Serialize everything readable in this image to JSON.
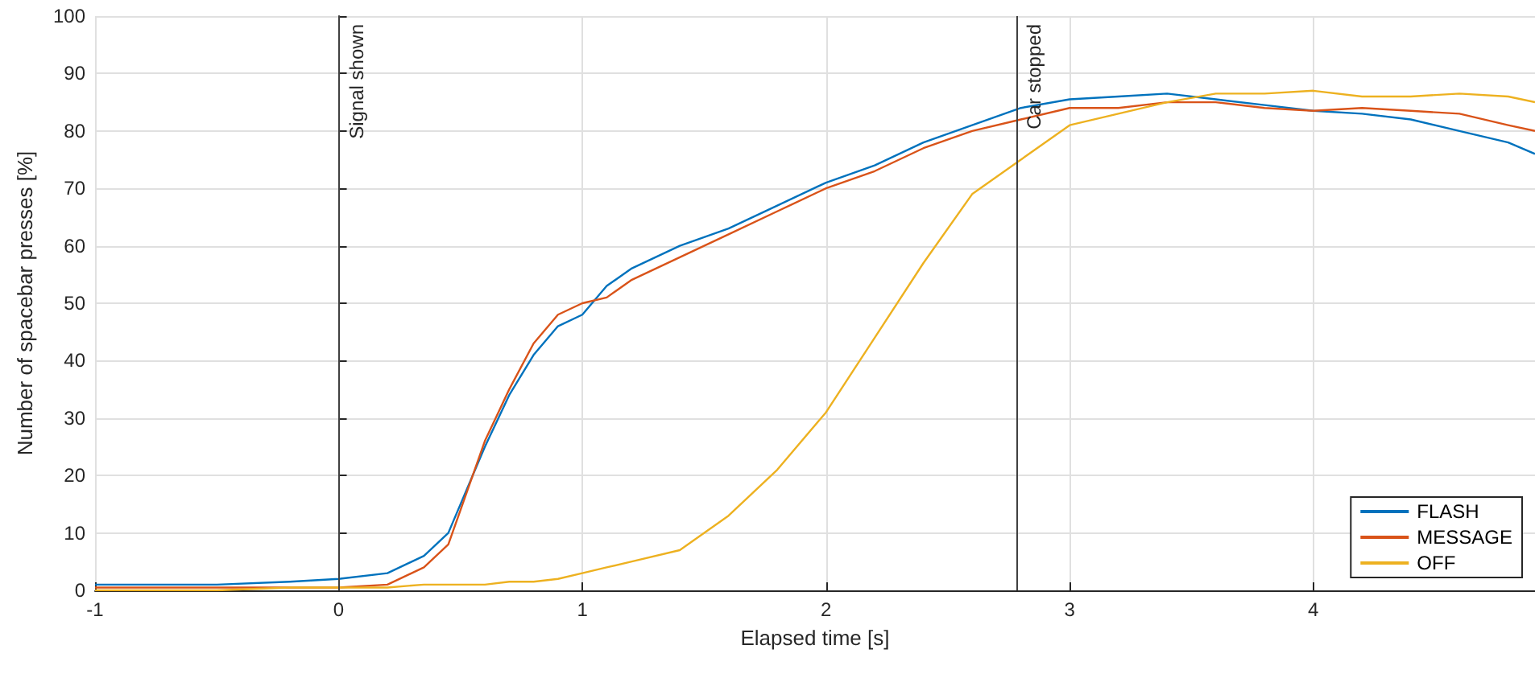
{
  "chart_data": {
    "type": "line",
    "xlabel": "Elapsed time [s]",
    "ylabel": "Number of spacebar presses [%]",
    "xlim": [
      -1,
      4.91
    ],
    "xticks": [
      -1,
      0,
      1,
      2,
      3,
      4
    ],
    "ylim": [
      0,
      100
    ],
    "yticks": [
      0,
      10,
      20,
      30,
      40,
      50,
      60,
      70,
      80,
      90,
      100
    ],
    "grid": true,
    "legend": "bottom right",
    "marker": "none",
    "line_style": "solid",
    "x": [
      -1,
      -0.5,
      -0.2,
      0,
      0.2,
      0.35,
      0.45,
      0.5,
      0.6,
      0.7,
      0.8,
      0.9,
      1.0,
      1.1,
      1.2,
      1.4,
      1.6,
      1.8,
      2.0,
      2.2,
      2.4,
      2.6,
      2.8,
      3.0,
      3.2,
      3.4,
      3.6,
      3.8,
      4.0,
      4.2,
      4.4,
      4.6,
      4.8,
      4.91
    ],
    "series": [
      {
        "name": "FLASH",
        "color": "#0072bd",
        "values": [
          1,
          1,
          1.5,
          2,
          3,
          6,
          10,
          15,
          25,
          34,
          41,
          46,
          48,
          53,
          56,
          60,
          63,
          67,
          71,
          74,
          78,
          81,
          84,
          85.5,
          86,
          86.5,
          85.5,
          84.5,
          83.5,
          83,
          82,
          80,
          78,
          76
        ]
      },
      {
        "name": "MESSAGE",
        "color": "#d95319",
        "values": [
          0.5,
          0.5,
          0.5,
          0.5,
          1,
          4,
          8,
          14,
          26,
          35,
          43,
          48,
          50,
          51,
          54,
          58,
          62,
          66,
          70,
          73,
          77,
          80,
          82,
          84,
          84,
          85,
          85,
          84,
          83.5,
          84,
          83.5,
          83,
          81,
          80
        ]
      },
      {
        "name": "OFF",
        "color": "#edb120",
        "values": [
          0,
          0,
          0.5,
          0.5,
          0.5,
          1,
          1,
          1,
          1,
          1.5,
          1.5,
          2,
          3,
          4,
          5,
          7,
          13,
          21,
          31,
          44,
          57,
          69,
          75,
          81,
          83,
          85,
          86.5,
          86.5,
          87,
          86,
          86,
          86.5,
          86,
          85
        ]
      }
    ],
    "ref_lines": [
      {
        "axis": "x",
        "value": 0,
        "label": "Signal shown",
        "color": "#404040"
      },
      {
        "axis": "x",
        "value": 2.78,
        "label": "Car stopped",
        "color": "#404040"
      }
    ]
  }
}
